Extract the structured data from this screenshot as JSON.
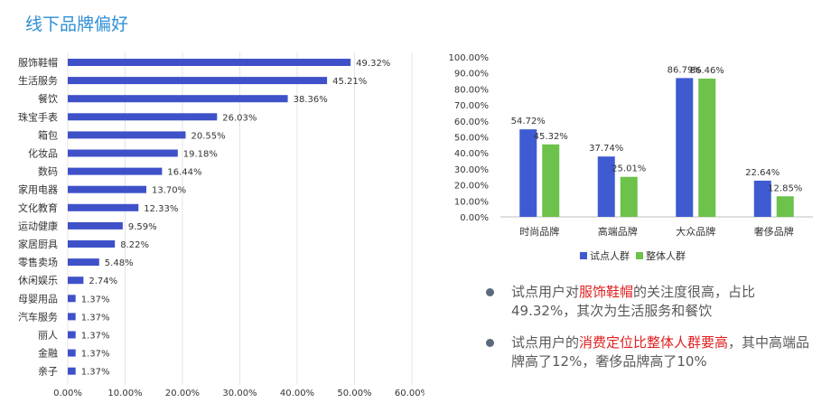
{
  "page": {
    "title": "线下品牌偏好"
  },
  "chart_data": [
    {
      "type": "bar",
      "orientation": "horizontal",
      "categories": [
        "服饰鞋帽",
        "生活服务",
        "餐饮",
        "珠宝手表",
        "箱包",
        "化妆品",
        "数码",
        "家用电器",
        "文化教育",
        "运动健康",
        "家居厨具",
        "零售卖场",
        "休闲娱乐",
        "母婴用品",
        "汽车服务",
        "丽人",
        "金融",
        "亲子"
      ],
      "values": [
        49.32,
        45.21,
        38.36,
        26.03,
        20.55,
        19.18,
        16.44,
        13.7,
        12.33,
        9.59,
        8.22,
        5.48,
        2.74,
        1.37,
        1.37,
        1.37,
        1.37,
        1.37
      ],
      "value_labels": [
        "49.32%",
        "45.21%",
        "38.36%",
        "26.03%",
        "20.55%",
        "19.18%",
        "16.44%",
        "13.70%",
        "12.33%",
        "9.59%",
        "8.22%",
        "5.48%",
        "2.74%",
        "1.37%",
        "1.37%",
        "1.37%",
        "1.37%",
        "1.37%"
      ],
      "xlim": [
        0,
        60
      ],
      "ticks": [
        "0.00%",
        "10.00%",
        "20.00%",
        "30.00%",
        "40.00%",
        "50.00%",
        "60.00%"
      ],
      "grid": true,
      "color": "#3f51c9"
    },
    {
      "type": "bar",
      "categories": [
        "时尚品牌",
        "高端品牌",
        "大众品牌",
        "奢侈品牌"
      ],
      "series": [
        {
          "name": "试点人群",
          "values": [
            54.72,
            37.74,
            86.79,
            22.64
          ],
          "labels": [
            "54.72%",
            "37.74%",
            "86.79%",
            "22.64%"
          ],
          "color": "#3f5bd2"
        },
        {
          "name": "整体人群",
          "values": [
            45.32,
            25.01,
            86.46,
            12.85
          ],
          "labels": [
            "45.32%",
            "25.01%",
            "86.46%",
            "12.85%"
          ],
          "color": "#6cc24a"
        }
      ],
      "ylim": [
        0,
        100
      ],
      "ticks": [
        "0.00%",
        "10.00%",
        "20.00%",
        "30.00%",
        "40.00%",
        "50.00%",
        "60.00%",
        "70.00%",
        "80.00%",
        "90.00%",
        "100.00%"
      ],
      "legend": "bottom"
    }
  ],
  "notes": [
    {
      "pre": "试点用户对",
      "hl": "服饰鞋帽",
      "post": "的关注度很高，占比49.32%，其次为生活服务和餐饮"
    },
    {
      "pre": "试点用户的",
      "hl": "消费定位比整体人群要高",
      "post": "，其中高端品牌高了12%，奢侈品牌高了10%"
    }
  ]
}
